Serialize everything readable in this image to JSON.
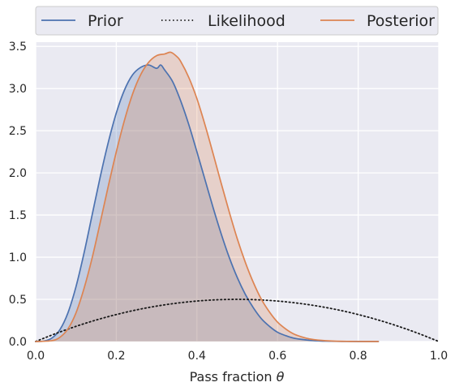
{
  "chart_data": {
    "type": "line",
    "title": "",
    "xlabel": "Pass fraction",
    "xlabel_symbol": "θ",
    "ylabel": "",
    "xlim": [
      0.0,
      1.0
    ],
    "ylim": [
      0.0,
      3.55
    ],
    "xticks": [
      "0.0",
      "0.2",
      "0.4",
      "0.6",
      "0.8",
      "1.0"
    ],
    "yticks": [
      "0.0",
      "0.5",
      "1.0",
      "1.5",
      "2.0",
      "2.5",
      "3.0",
      "3.5"
    ],
    "grid": true,
    "legend_position": "top",
    "series": [
      {
        "name": "Prior",
        "color": "#4c72b0",
        "style": "solid",
        "filled": true,
        "x": [
          0.0,
          0.02,
          0.04,
          0.06,
          0.08,
          0.1,
          0.12,
          0.14,
          0.16,
          0.18,
          0.2,
          0.22,
          0.24,
          0.26,
          0.28,
          0.3,
          0.31,
          0.32,
          0.34,
          0.36,
          0.38,
          0.4,
          0.42,
          0.44,
          0.46,
          0.48,
          0.5,
          0.52,
          0.54,
          0.56,
          0.58,
          0.6,
          0.62,
          0.64,
          0.66,
          0.68,
          0.7,
          0.72,
          0.76,
          0.8,
          0.85
        ],
        "y": [
          0.0,
          0.005,
          0.04,
          0.14,
          0.34,
          0.65,
          1.05,
          1.5,
          1.95,
          2.36,
          2.71,
          2.98,
          3.16,
          3.25,
          3.28,
          3.24,
          3.28,
          3.22,
          3.08,
          2.85,
          2.57,
          2.25,
          1.92,
          1.59,
          1.28,
          1.0,
          0.76,
          0.56,
          0.4,
          0.27,
          0.18,
          0.11,
          0.07,
          0.04,
          0.025,
          0.014,
          0.008,
          0.004,
          0.001,
          0.0,
          0.0
        ]
      },
      {
        "name": "Likelihood",
        "color": "#1a1a1a",
        "style": "dotted",
        "filled": false,
        "x": [
          0.0,
          0.05,
          0.1,
          0.15,
          0.2,
          0.25,
          0.3,
          0.35,
          0.4,
          0.45,
          0.5,
          0.55,
          0.6,
          0.65,
          0.7,
          0.75,
          0.8,
          0.85,
          0.9,
          0.95,
          1.0
        ],
        "y": [
          0.0,
          0.095,
          0.18,
          0.255,
          0.32,
          0.375,
          0.42,
          0.455,
          0.48,
          0.495,
          0.5,
          0.495,
          0.48,
          0.455,
          0.42,
          0.375,
          0.32,
          0.255,
          0.18,
          0.095,
          0.0
        ]
      },
      {
        "name": "Posterior",
        "color": "#dd8452",
        "style": "solid",
        "filled": true,
        "x": [
          0.0,
          0.04,
          0.06,
          0.08,
          0.1,
          0.12,
          0.14,
          0.16,
          0.18,
          0.2,
          0.22,
          0.24,
          0.26,
          0.28,
          0.3,
          0.32,
          0.335,
          0.35,
          0.36,
          0.38,
          0.4,
          0.42,
          0.44,
          0.46,
          0.48,
          0.5,
          0.52,
          0.54,
          0.56,
          0.58,
          0.6,
          0.62,
          0.64,
          0.66,
          0.68,
          0.7,
          0.74,
          0.78,
          0.82,
          0.85
        ],
        "y": [
          0.0,
          0.01,
          0.05,
          0.15,
          0.34,
          0.63,
          0.99,
          1.41,
          1.84,
          2.25,
          2.62,
          2.93,
          3.16,
          3.31,
          3.39,
          3.41,
          3.43,
          3.38,
          3.32,
          3.13,
          2.88,
          2.57,
          2.23,
          1.88,
          1.54,
          1.22,
          0.94,
          0.7,
          0.5,
          0.35,
          0.23,
          0.15,
          0.09,
          0.055,
          0.03,
          0.017,
          0.005,
          0.0015,
          0.0,
          0.0
        ]
      }
    ]
  }
}
